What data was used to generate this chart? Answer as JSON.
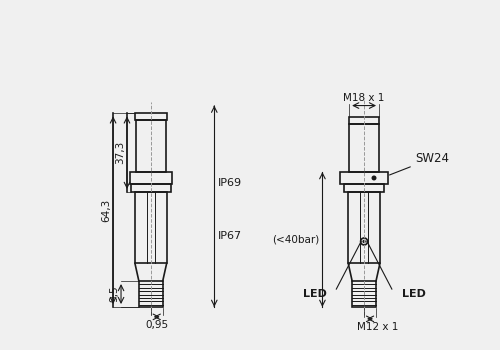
{
  "bg_color": "#f0f0f0",
  "line_color": "#1a1a1a",
  "lw": 1.2,
  "lw_thick": 1.8,
  "dim_color": "#333333",
  "font_size": 7.5,
  "annotations": {
    "dim_37_3": "37,3",
    "dim_64_3": "64,3",
    "dim_9_5": "9,5",
    "dim_0_95": "0,95",
    "ip69": "IP69",
    "ip67": "IP67",
    "m18x1": "M18 x 1",
    "sw24": "SW24",
    "lt40bar": "(<40bar)",
    "m12x1": "M12 x 1",
    "led_left": "LED",
    "led_right": "LED"
  }
}
